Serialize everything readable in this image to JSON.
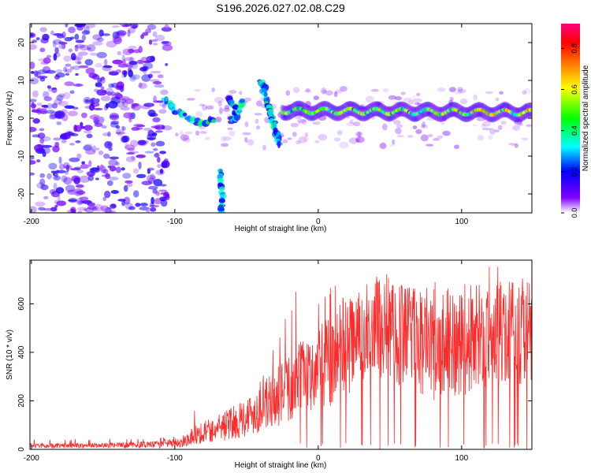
{
  "title": "S196.2026.027.02.08.C29",
  "chart_data": [
    {
      "type": "heatmap",
      "xlabel": "Height of straight line (km)",
      "ylabel": "Frequency (Hz)",
      "xlim": [
        -201,
        149
      ],
      "ylim": [
        -25,
        25
      ],
      "x_ticks": [
        -200,
        -100,
        0,
        100
      ],
      "y_ticks": [
        -20,
        -10,
        0,
        10,
        20
      ],
      "grid": false,
      "colorbar": {
        "label": "Normalized spectral amplitude",
        "range": [
          0,
          0.92
        ],
        "ticks": [
          "0.0",
          "0.2",
          "0.4",
          "0.6",
          "0.8"
        ],
        "tick_values": [
          0,
          0.2,
          0.4,
          0.6,
          0.8
        ],
        "colors": [
          "#ffffff",
          "#7f00ff",
          "#0000ff",
          "#00ffff",
          "#00ff00",
          "#ffff00",
          "#ff8000",
          "#ff0000",
          "#ff0080"
        ]
      },
      "features": [
        {
          "name": "noise",
          "x_range": [
            -201,
            -105
          ],
          "y_range": [
            -25,
            25
          ],
          "amplitude": 0.15
        },
        {
          "name": "noise-right",
          "x_range": [
            -100,
            149
          ],
          "y_range": [
            -25,
            25
          ],
          "amplitude": 0.08
        },
        {
          "name": "arc",
          "points": [
            [
              -108,
              5
            ],
            [
              -100,
              2
            ],
            [
              -90,
              0
            ],
            [
              -80,
              -2
            ],
            [
              -72,
              0
            ]
          ],
          "amplitude": 0.35
        },
        {
          "name": "tail",
          "points": [
            [
              -68,
              -14
            ],
            [
              -68,
              -18
            ],
            [
              -67,
              -22
            ],
            [
              -68,
              -25
            ]
          ],
          "amplitude": 0.3
        },
        {
          "name": "blob-left",
          "points": [
            [
              -62,
              5
            ],
            [
              -58,
              3
            ],
            [
              -60,
              -1
            ],
            [
              -55,
              2
            ],
            [
              -52,
              5
            ]
          ],
          "amplitude": 0.3
        },
        {
          "name": "spike",
          "points": [
            [
              -40,
              10
            ],
            [
              -38,
              8
            ],
            [
              -36,
              5
            ],
            [
              -34,
              2
            ],
            [
              -32,
              0
            ],
            [
              -30,
              -3
            ],
            [
              -28,
              -5
            ],
            [
              -28,
              -7
            ]
          ],
          "amplitude": 0.3
        },
        {
          "name": "band",
          "x_range": [
            -25,
            149
          ],
          "freq_at_start": 2,
          "freq_at_end": 1.5,
          "amplitude": 0.8
        }
      ]
    },
    {
      "type": "line",
      "xlabel": "Height of straight line (km)",
      "ylabel": "SNR (10 * v/v)",
      "xlim": [
        -201,
        149
      ],
      "ylim": [
        0,
        780
      ],
      "x_ticks": [
        -200,
        -100,
        0,
        100
      ],
      "y_ticks": [
        0,
        200,
        400,
        600
      ],
      "grid": false,
      "series": [
        {
          "name": "SNR",
          "color": "#ff2a2a",
          "envelope": {
            "x": [
              -201,
              -150,
              -110,
              -95,
              -85,
              -70,
              -60,
              -45,
              -30,
              -15,
              0,
              15,
              30,
              45,
              60,
              80,
              100,
              120,
              149
            ],
            "mean": [
              15,
              16,
              20,
              30,
              65,
              85,
              110,
              150,
              210,
              280,
              330,
              400,
              460,
              520,
              470,
              430,
              450,
              470,
              480
            ],
            "spread": [
              10,
              10,
              15,
              22,
              45,
              55,
              70,
              90,
              120,
              150,
              180,
              200,
              200,
              220,
              220,
              230,
              230,
              220,
              220
            ],
            "peak": [
              40,
              45,
              50,
              60,
              180,
              165,
              175,
              230,
              450,
              690,
              625,
              710,
              690,
              780,
              660,
              700,
              720,
              760,
              770
            ]
          }
        }
      ]
    }
  ]
}
